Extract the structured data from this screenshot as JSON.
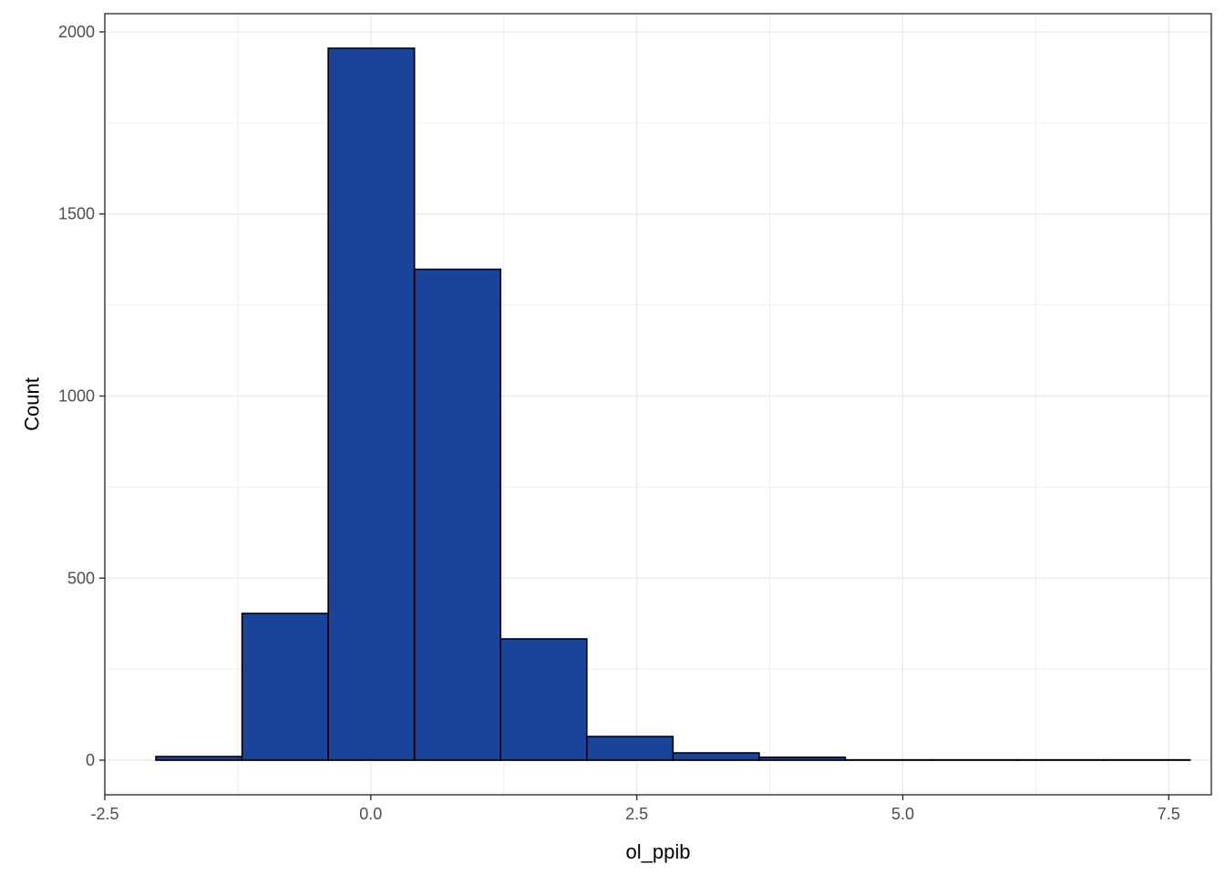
{
  "chart_data": {
    "type": "bar",
    "subtype": "histogram",
    "title": "",
    "xlabel": "ol_ppib",
    "ylabel": "Count",
    "xlim": [
      -2.5,
      7.9
    ],
    "ylim": [
      -95,
      2050
    ],
    "x_ticks": [
      -2.5,
      0.0,
      2.5,
      5.0,
      7.5
    ],
    "x_tick_labels": [
      "-2.5",
      "0.0",
      "2.5",
      "5.0",
      "7.5"
    ],
    "y_ticks": [
      0,
      500,
      1000,
      1500,
      2000
    ],
    "y_tick_labels": [
      "0",
      "500",
      "1000",
      "1500",
      "2000"
    ],
    "bin_width": 0.81,
    "bins": [
      {
        "x0": -2.02,
        "x1": -1.21,
        "count": 10
      },
      {
        "x0": -1.21,
        "x1": -0.4,
        "count": 403
      },
      {
        "x0": -0.4,
        "x1": 0.41,
        "count": 1955
      },
      {
        "x0": 0.41,
        "x1": 1.22,
        "count": 1348
      },
      {
        "x0": 1.22,
        "x1": 2.03,
        "count": 333
      },
      {
        "x0": 2.03,
        "x1": 2.84,
        "count": 65
      },
      {
        "x0": 2.84,
        "x1": 3.65,
        "count": 20
      },
      {
        "x0": 3.65,
        "x1": 4.46,
        "count": 8
      },
      {
        "x0": 4.46,
        "x1": 5.27,
        "count": 1
      },
      {
        "x0": 5.27,
        "x1": 6.08,
        "count": 1
      },
      {
        "x0": 6.08,
        "x1": 6.89,
        "count": 1
      },
      {
        "x0": 6.89,
        "x1": 7.7,
        "count": 1
      }
    ],
    "grid": true,
    "bar_fill": "#1a4499",
    "bar_stroke": "#000000",
    "grid_color": "#ebebeb",
    "panel_border": "#333333"
  }
}
